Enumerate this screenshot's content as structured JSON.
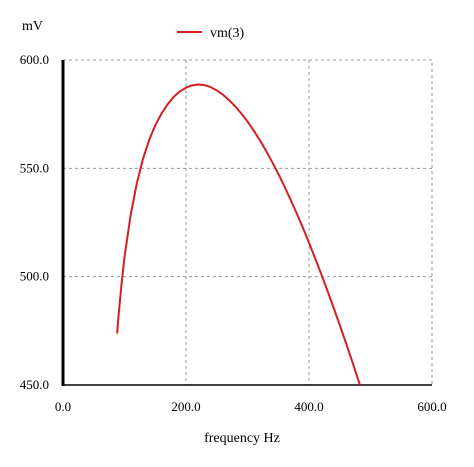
{
  "chart_data": {
    "type": "line",
    "ylabel": "mV",
    "xlabel": "frequency Hz",
    "xlim": [
      0,
      600
    ],
    "ylim": [
      450,
      600
    ],
    "x_ticks": [
      0,
      200,
      400,
      600
    ],
    "x_tick_labels": [
      "0.0",
      "200.0",
      "400.0",
      "600.0"
    ],
    "y_ticks": [
      450,
      500,
      550,
      600
    ],
    "y_tick_labels": [
      "450.0",
      "500.0",
      "550.0",
      "600.0"
    ],
    "grid": true,
    "legend_position": "top-center",
    "series": [
      {
        "name": "vm(3)",
        "color": "#d42020",
        "x": [
          88,
          90,
          95,
          100,
          110,
          120,
          130,
          140,
          150,
          160,
          170,
          180,
          190,
          200,
          210,
          220,
          230,
          240,
          250,
          260,
          270,
          280,
          290,
          300,
          310,
          320,
          330,
          340,
          350,
          360,
          370,
          380,
          390,
          400,
          410,
          420,
          430,
          440,
          450,
          460,
          470,
          480,
          490,
          494
        ],
        "y": [
          473.8,
          481,
          496,
          509,
          528.5,
          543,
          554.3,
          563,
          569.8,
          575.2,
          579.5,
          583,
          585.5,
          587.2,
          588.3,
          588.7,
          588.4,
          587.5,
          586,
          584,
          581.5,
          578.6,
          575.3,
          571.6,
          567.5,
          563,
          558.2,
          553,
          547.5,
          541.7,
          535.6,
          529.2,
          522.6,
          515.7,
          508.5,
          501.1,
          493.5,
          485.7,
          477.7,
          469.5,
          461.1,
          452.5,
          443.7,
          440.2
        ]
      }
    ]
  }
}
